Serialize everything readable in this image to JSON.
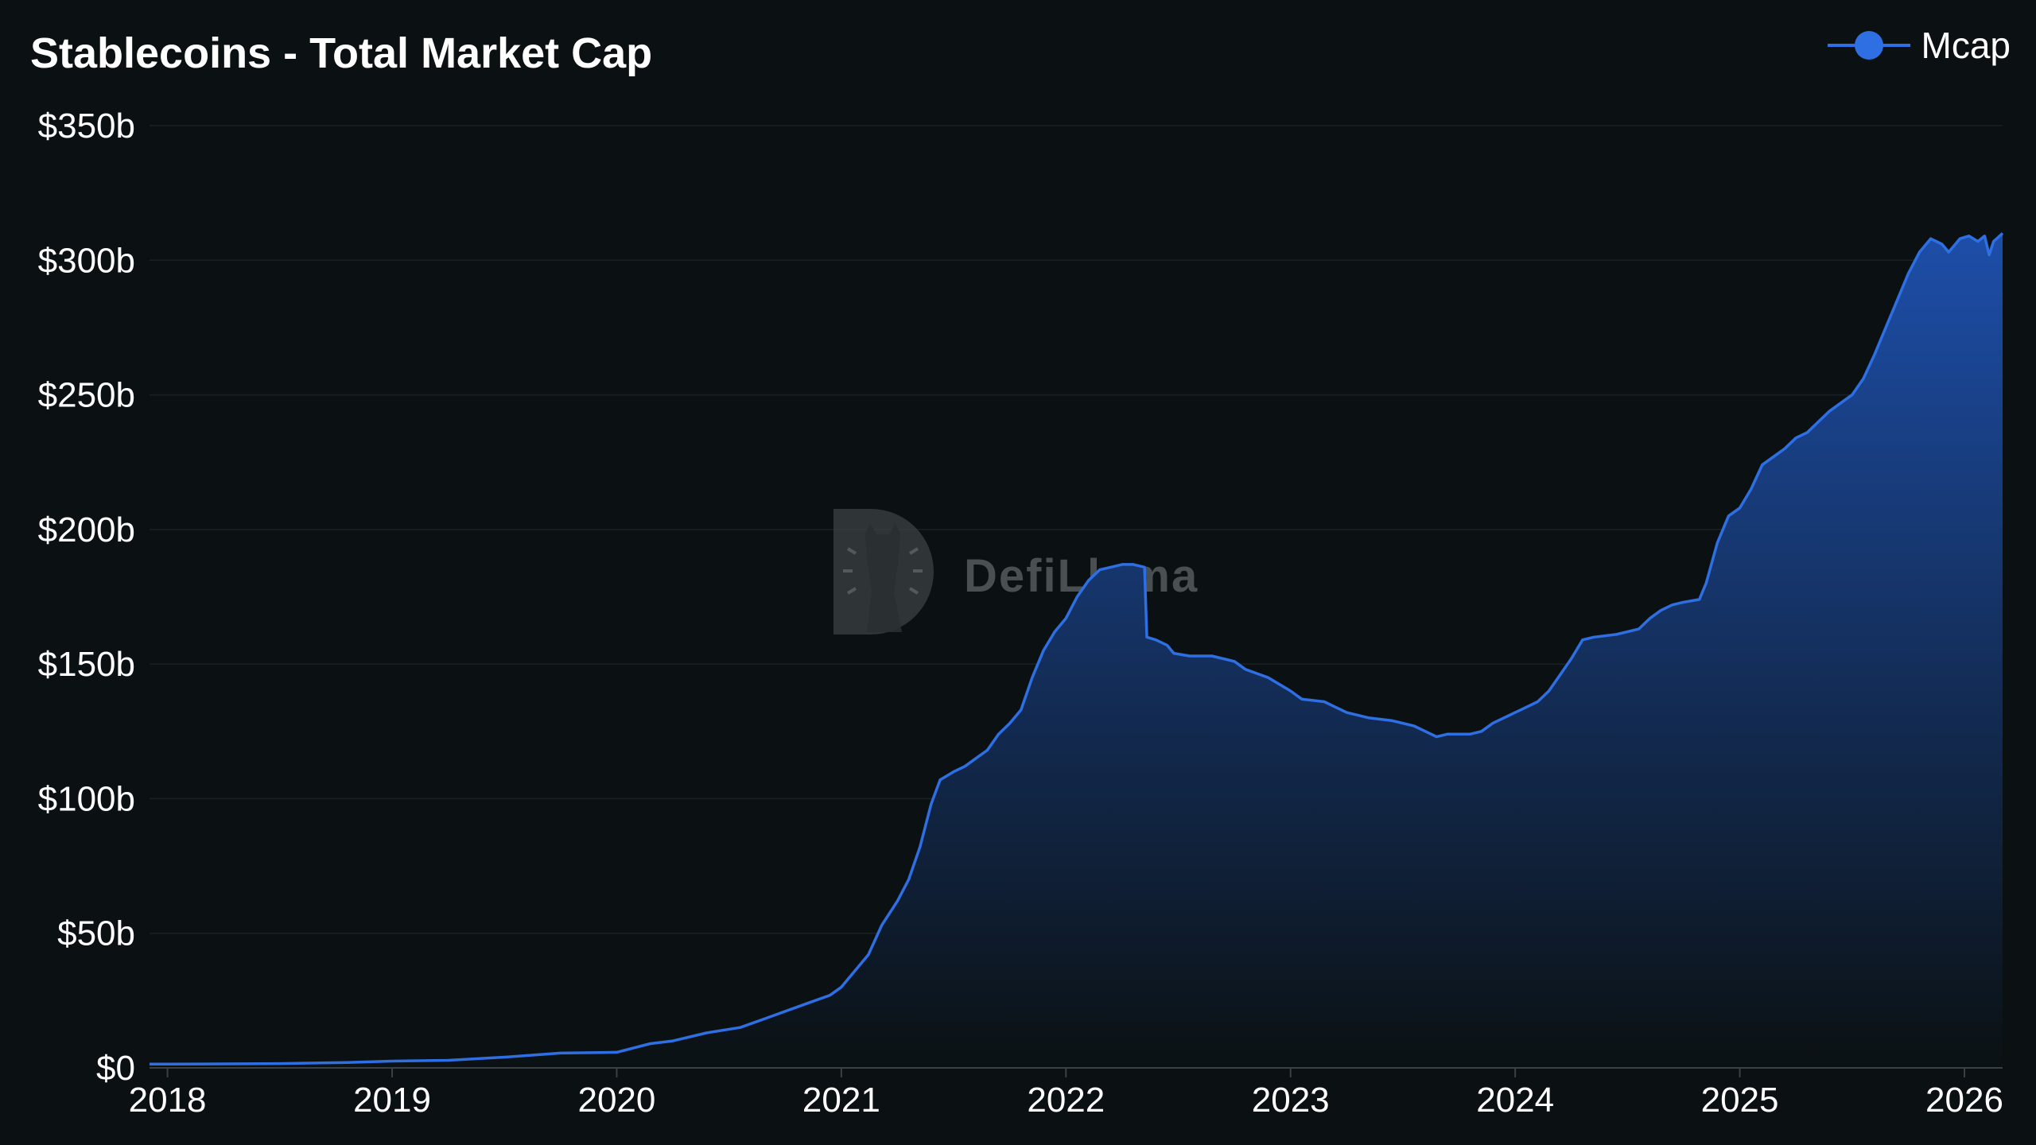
{
  "chart_data": {
    "type": "area",
    "title": "Stablecoins - Total Market Cap",
    "xlabel": "",
    "ylabel": "",
    "ylim": [
      0,
      350
    ],
    "y_unit_prefix": "$",
    "y_unit_suffix": "b",
    "y_ticks": [
      0,
      50,
      100,
      150,
      200,
      250,
      300,
      350
    ],
    "y_tick_labels": [
      "$0",
      "$50b",
      "$100b",
      "$150b",
      "$200b",
      "$250b",
      "$300b",
      "$350b"
    ],
    "x_ticks": [
      2018,
      2019,
      2020,
      2021,
      2022,
      2023,
      2024,
      2025,
      2026
    ],
    "x_tick_labels": [
      "2018",
      "2019",
      "2020",
      "2021",
      "2022",
      "2023",
      "2024",
      "2025",
      "2026"
    ],
    "xlim": [
      2017.92,
      2026.17
    ],
    "grid": true,
    "legend_position": "top-right",
    "watermark": "DefiLlama",
    "colors": {
      "line": "#2f6fe4",
      "fill_top": "#1d4ea8",
      "fill_bottom": "#0b1113",
      "background": "#0b1113",
      "grid": "#1a2124",
      "text": "#ffffff"
    },
    "series": [
      {
        "name": "Mcap",
        "points": [
          [
            2017.92,
            1.4
          ],
          [
            2018.0,
            1.4
          ],
          [
            2018.5,
            1.6
          ],
          [
            2018.8,
            2.0
          ],
          [
            2019.0,
            2.5
          ],
          [
            2019.25,
            2.8
          ],
          [
            2019.5,
            4.0
          ],
          [
            2019.75,
            5.5
          ],
          [
            2020.0,
            5.8
          ],
          [
            2020.15,
            9.0
          ],
          [
            2020.25,
            10.0
          ],
          [
            2020.4,
            13.0
          ],
          [
            2020.55,
            15.0
          ],
          [
            2020.65,
            18.0
          ],
          [
            2020.75,
            21.0
          ],
          [
            2020.85,
            24.0
          ],
          [
            2020.95,
            27.0
          ],
          [
            2021.0,
            30.0
          ],
          [
            2021.06,
            36.0
          ],
          [
            2021.12,
            42.0
          ],
          [
            2021.18,
            53.0
          ],
          [
            2021.25,
            62.0
          ],
          [
            2021.3,
            70.0
          ],
          [
            2021.35,
            82.0
          ],
          [
            2021.4,
            98.0
          ],
          [
            2021.44,
            107.0
          ],
          [
            2021.5,
            110.0
          ],
          [
            2021.55,
            112.0
          ],
          [
            2021.6,
            115.0
          ],
          [
            2021.65,
            118.0
          ],
          [
            2021.7,
            124.0
          ],
          [
            2021.75,
            128.0
          ],
          [
            2021.8,
            133.0
          ],
          [
            2021.85,
            145.0
          ],
          [
            2021.9,
            155.0
          ],
          [
            2021.95,
            162.0
          ],
          [
            2022.0,
            167.0
          ],
          [
            2022.05,
            175.0
          ],
          [
            2022.1,
            181.0
          ],
          [
            2022.15,
            185.0
          ],
          [
            2022.2,
            186.0
          ],
          [
            2022.25,
            187.0
          ],
          [
            2022.3,
            187.0
          ],
          [
            2022.35,
            186.0
          ],
          [
            2022.36,
            160.0
          ],
          [
            2022.4,
            159.0
          ],
          [
            2022.45,
            157.0
          ],
          [
            2022.48,
            154.0
          ],
          [
            2022.55,
            153.0
          ],
          [
            2022.65,
            153.0
          ],
          [
            2022.75,
            151.0
          ],
          [
            2022.8,
            148.0
          ],
          [
            2022.9,
            145.0
          ],
          [
            2023.0,
            140.0
          ],
          [
            2023.05,
            137.0
          ],
          [
            2023.15,
            136.0
          ],
          [
            2023.2,
            134.0
          ],
          [
            2023.25,
            132.0
          ],
          [
            2023.35,
            130.0
          ],
          [
            2023.45,
            129.0
          ],
          [
            2023.55,
            127.0
          ],
          [
            2023.6,
            125.0
          ],
          [
            2023.65,
            123.0
          ],
          [
            2023.7,
            124.0
          ],
          [
            2023.8,
            124.0
          ],
          [
            2023.85,
            125.0
          ],
          [
            2023.9,
            128.0
          ],
          [
            2024.0,
            132.0
          ],
          [
            2024.05,
            134.0
          ],
          [
            2024.1,
            136.0
          ],
          [
            2024.15,
            140.0
          ],
          [
            2024.2,
            146.0
          ],
          [
            2024.25,
            152.0
          ],
          [
            2024.3,
            159.0
          ],
          [
            2024.35,
            160.0
          ],
          [
            2024.45,
            161.0
          ],
          [
            2024.55,
            163.0
          ],
          [
            2024.6,
            167.0
          ],
          [
            2024.65,
            170.0
          ],
          [
            2024.7,
            172.0
          ],
          [
            2024.75,
            173.0
          ],
          [
            2024.82,
            174.0
          ],
          [
            2024.85,
            180.0
          ],
          [
            2024.9,
            195.0
          ],
          [
            2024.95,
            205.0
          ],
          [
            2025.0,
            208.0
          ],
          [
            2025.05,
            215.0
          ],
          [
            2025.1,
            224.0
          ],
          [
            2025.15,
            227.0
          ],
          [
            2025.2,
            230.0
          ],
          [
            2025.25,
            234.0
          ],
          [
            2025.3,
            236.0
          ],
          [
            2025.35,
            240.0
          ],
          [
            2025.4,
            244.0
          ],
          [
            2025.45,
            247.0
          ],
          [
            2025.5,
            250.0
          ],
          [
            2025.55,
            256.0
          ],
          [
            2025.6,
            265.0
          ],
          [
            2025.65,
            275.0
          ],
          [
            2025.7,
            285.0
          ],
          [
            2025.75,
            295.0
          ],
          [
            2025.8,
            303.0
          ],
          [
            2025.85,
            308.0
          ],
          [
            2025.9,
            306.0
          ],
          [
            2025.93,
            303.0
          ],
          [
            2025.98,
            308.0
          ],
          [
            2026.02,
            309.0
          ],
          [
            2026.06,
            307.0
          ],
          [
            2026.09,
            309.0
          ],
          [
            2026.11,
            302.0
          ],
          [
            2026.13,
            307.0
          ],
          [
            2026.17,
            310.0
          ]
        ]
      }
    ]
  }
}
